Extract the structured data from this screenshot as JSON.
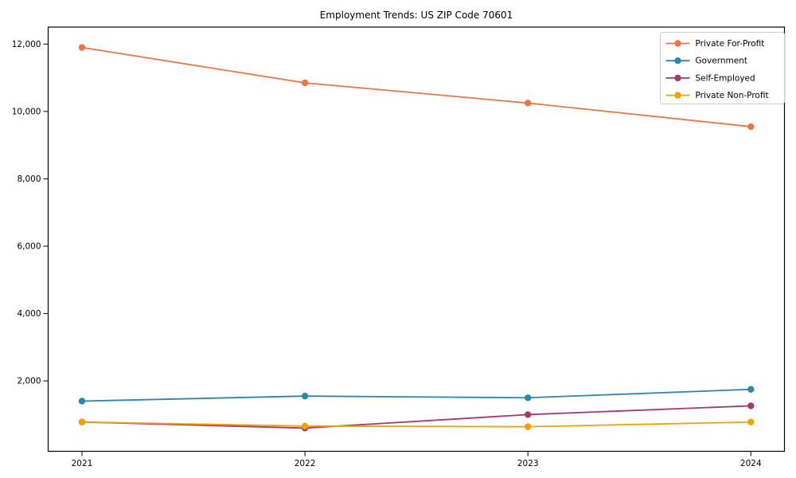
{
  "chart_data": {
    "type": "line",
    "title": "Employment Trends: US ZIP Code 70601",
    "xlabel": "",
    "ylabel": "",
    "x": [
      "2021",
      "2022",
      "2023",
      "2024"
    ],
    "series": [
      {
        "name": "Private For-Profit",
        "color": "#E8764A",
        "values": [
          11900,
          10850,
          10250,
          9550
        ]
      },
      {
        "name": "Government",
        "color": "#2E86AB",
        "values": [
          1400,
          1550,
          1500,
          1750
        ]
      },
      {
        "name": "Self-Employed",
        "color": "#A23B72",
        "values": [
          780,
          600,
          1000,
          1260
        ]
      },
      {
        "name": "Private Non-Profit",
        "color": "#F2A104",
        "values": [
          780,
          660,
          640,
          780
        ]
      }
    ],
    "yticks": [
      2000,
      4000,
      6000,
      8000,
      10000,
      12000
    ],
    "ytick_labels": [
      "2,000",
      "4,000",
      "6,000",
      "8,000",
      "10,000",
      "12,000"
    ],
    "ylim": [
      -90,
      12505
    ],
    "grid": false,
    "marker": "o",
    "legend_position": "upper right",
    "axis_color": "#000000",
    "legend_border_color": "#cccccc",
    "background_color": "#ffffff"
  }
}
